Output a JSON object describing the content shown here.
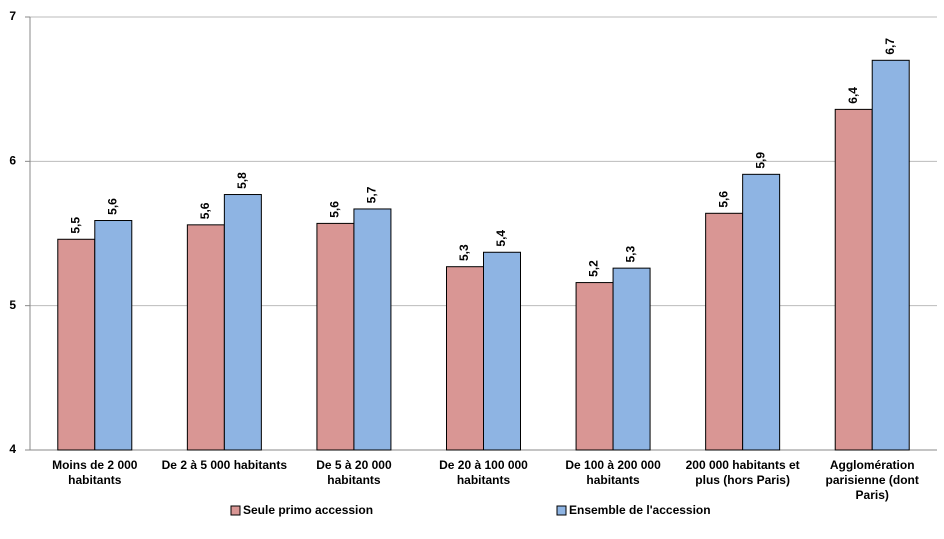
{
  "chart_data": {
    "type": "bar",
    "categories": [
      "Moins de 2 000 habitants",
      "De 2 à 5 000 habitants",
      "De 5 à 20 000 habitants",
      "De 20 à 100 000 habitants",
      "De 100 à 200 000 habitants",
      "200 000 habitants et plus (hors Paris)",
      "Agglomération parisienne (dont Paris)"
    ],
    "series": [
      {
        "name": "Seule primo accession",
        "color": "#d99694",
        "values": [
          5.46,
          5.56,
          5.57,
          5.27,
          5.16,
          5.64,
          6.36
        ],
        "value_labels": [
          "5,5",
          "5,6",
          "5,6",
          "5,3",
          "5,2",
          "5,6",
          "6,4"
        ]
      },
      {
        "name": "Ensemble de l'accession",
        "color": "#8eb4e3",
        "values": [
          5.59,
          5.77,
          5.67,
          5.37,
          5.26,
          5.91,
          6.7
        ],
        "value_labels": [
          "5,6",
          "5,8",
          "5,7",
          "5,4",
          "5,3",
          "5,9",
          "6,7"
        ]
      }
    ],
    "ylim": [
      4,
      7
    ],
    "yticks": [
      4,
      5,
      6,
      7
    ],
    "grid": true,
    "legend": "bottom"
  }
}
